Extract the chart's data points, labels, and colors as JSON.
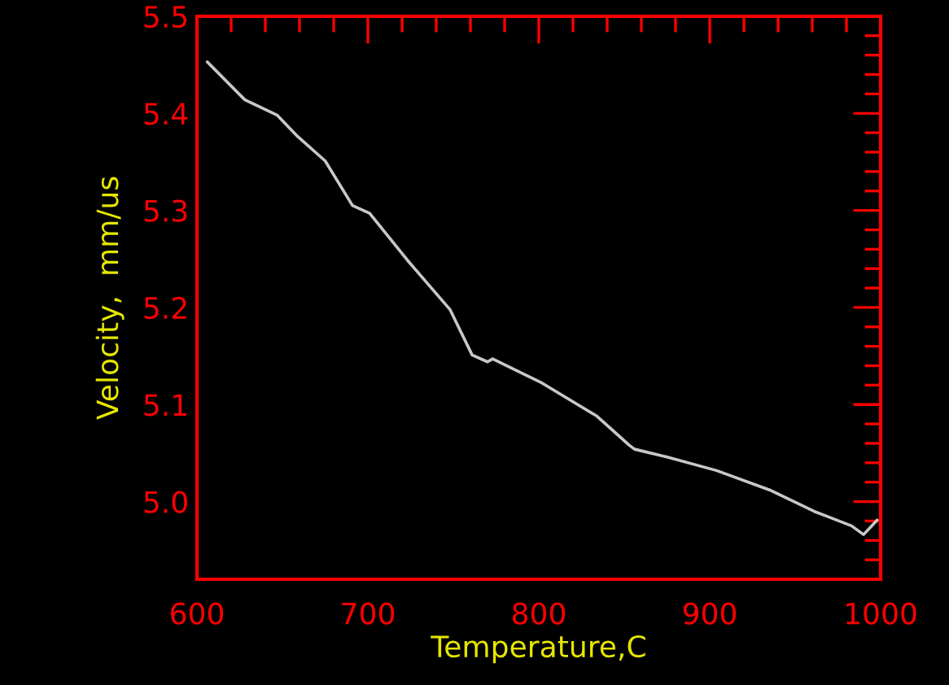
{
  "chart_data": {
    "type": "line",
    "xlabel": "Temperature,C",
    "ylabel": "Velocity,  mm/us",
    "xlim": [
      600,
      1000
    ],
    "ylim": [
      4.92,
      5.5
    ],
    "xticks": [
      600,
      700,
      800,
      900,
      1000
    ],
    "yticks": [
      {
        "value": 5.0,
        "label": "5.0"
      },
      5.1,
      5.2,
      5.3,
      5.4,
      5.5
    ],
    "series": [
      {
        "color": "#c8c8c8",
        "x": [
          606,
          628,
          647,
          659,
          675,
          691,
          701,
          723,
          748,
          761,
          770,
          773,
          802,
          834,
          853,
          856,
          875,
          904,
          935,
          961,
          983,
          990,
          998
        ],
        "values": [
          5.453,
          5.414,
          5.398,
          5.376,
          5.351,
          5.305,
          5.297,
          5.249,
          5.198,
          5.151,
          5.144,
          5.147,
          5.122,
          5.088,
          5.058,
          5.054,
          5.046,
          5.032,
          5.012,
          4.99,
          4.975,
          4.966,
          4.981
        ]
      }
    ]
  }
}
